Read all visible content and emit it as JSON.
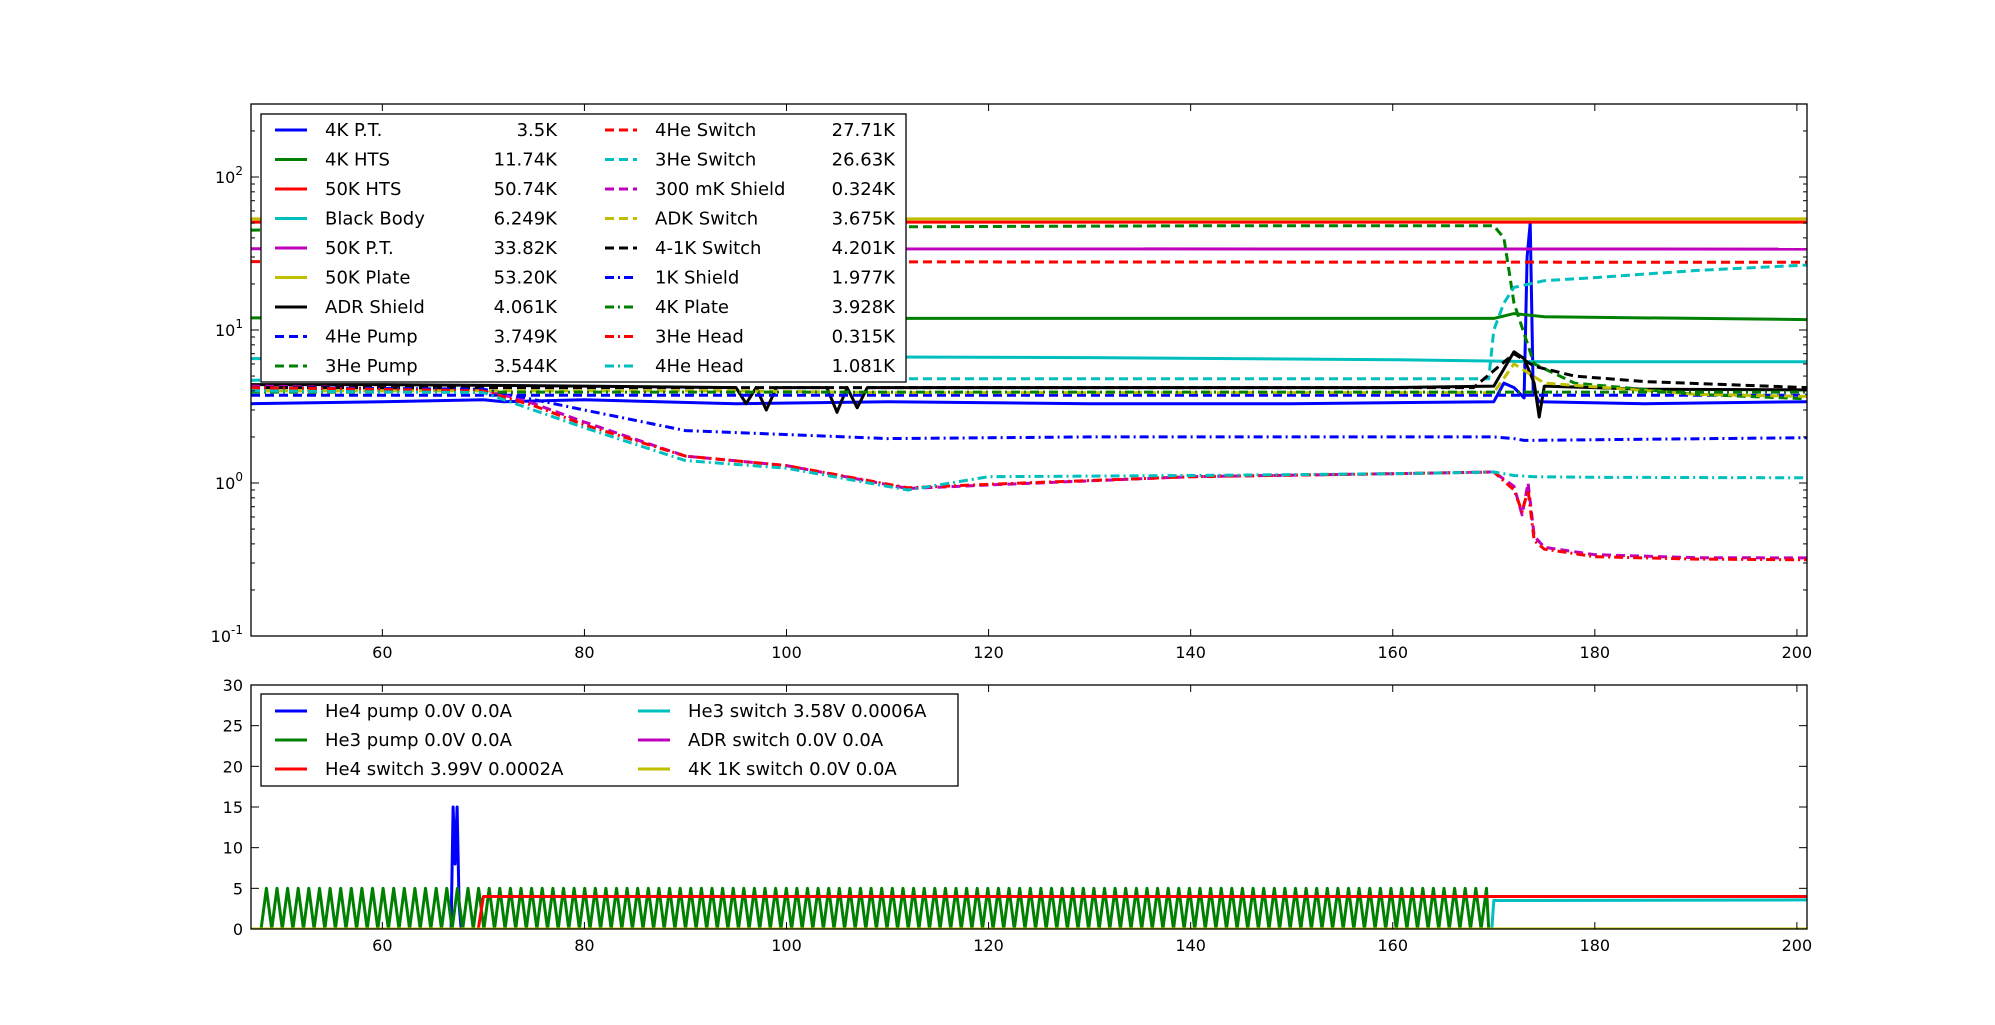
{
  "chart_data": [
    {
      "type": "line",
      "yscale": "log",
      "xlim": [
        47,
        201
      ],
      "ylim": [
        0.1,
        300
      ],
      "x_ticks": [
        60,
        80,
        100,
        120,
        140,
        160,
        180,
        200
      ],
      "x_tick_labels": [
        "60",
        "80",
        "100",
        "120",
        "140",
        "160",
        "180",
        "200"
      ],
      "y_ticks": [
        0.1,
        1,
        10,
        100
      ],
      "y_tick_labels": [
        [
          "10",
          "-1"
        ],
        [
          "10",
          "0"
        ],
        [
          "10",
          "1"
        ],
        [
          "10",
          "2"
        ]
      ],
      "legend_position": "top-left",
      "legend_columns": 2,
      "series": [
        {
          "name": "4K P.T.",
          "value": "3.5K",
          "color": "#0000ff",
          "style": "solid",
          "points": [
            [
              47,
              3.3
            ],
            [
              60,
              3.4
            ],
            [
              70,
              3.5
            ],
            [
              72,
              3.4
            ],
            [
              80,
              3.5
            ],
            [
              95,
              3.3
            ],
            [
              110,
              3.4
            ],
            [
              130,
              3.3
            ],
            [
              150,
              3.3
            ],
            [
              170,
              3.4
            ],
            [
              171,
              4.5
            ],
            [
              172,
              4.2
            ],
            [
              173,
              3.6
            ],
            [
              173.3,
              30
            ],
            [
              173.6,
              50
            ],
            [
              173.9,
              4
            ],
            [
              174.5,
              3.4
            ],
            [
              185,
              3.3
            ],
            [
              201,
              3.4
            ]
          ]
        },
        {
          "name": "4K HTS",
          "value": "11.74K",
          "color": "#008000",
          "style": "solid",
          "points": [
            [
              47,
              12
            ],
            [
              80,
              12
            ],
            [
              100,
              11.9
            ],
            [
              140,
              11.9
            ],
            [
              170,
              11.9
            ],
            [
              172,
              12.8
            ],
            [
              175,
              12.2
            ],
            [
              201,
              11.7
            ]
          ]
        },
        {
          "name": "50K HTS",
          "value": "50.74K",
          "color": "#ff0000",
          "style": "solid",
          "points": [
            [
              47,
              50.7
            ],
            [
              201,
              50.7
            ]
          ]
        },
        {
          "name": "Black Body",
          "value": "6.249K",
          "color": "#00bfbf",
          "style": "solid",
          "points": [
            [
              47,
              6.5
            ],
            [
              80,
              6.6
            ],
            [
              100,
              6.7
            ],
            [
              130,
              6.6
            ],
            [
              160,
              6.4
            ],
            [
              175,
              6.2
            ],
            [
              201,
              6.2
            ]
          ]
        },
        {
          "name": "50K P.T.",
          "value": "33.82K",
          "color": "#bf00bf",
          "style": "solid",
          "points": [
            [
              47,
              34
            ],
            [
              201,
              33.8
            ]
          ]
        },
        {
          "name": "50K Plate",
          "value": "53.20K",
          "color": "#bfbf00",
          "style": "solid",
          "points": [
            [
              47,
              53.2
            ],
            [
              201,
              53.2
            ]
          ]
        },
        {
          "name": "ADR Shield",
          "value": "4.061K",
          "color": "#000000",
          "style": "solid",
          "points": [
            [
              47,
              4.4
            ],
            [
              60,
              4.4
            ],
            [
              80,
              4.3
            ],
            [
              95,
              4.2
            ],
            [
              96,
              3.3
            ],
            [
              97,
              4.2
            ],
            [
              98,
              3.0
            ],
            [
              99,
              4.2
            ],
            [
              104,
              4.2
            ],
            [
              105,
              2.9
            ],
            [
              106,
              4.2
            ],
            [
              107,
              3.1
            ],
            [
              108,
              4.2
            ],
            [
              130,
              4.2
            ],
            [
              160,
              4.2
            ],
            [
              170,
              4.3
            ],
            [
              172,
              7.2
            ],
            [
              173,
              6.5
            ],
            [
              174,
              4.5
            ],
            [
              174.5,
              2.7
            ],
            [
              175,
              4.3
            ],
            [
              185,
              4.1
            ],
            [
              201,
              4.06
            ]
          ]
        },
        {
          "name": "4He Pump",
          "value": "3.749K",
          "color": "#0000ff",
          "style": "dashed",
          "points": [
            [
              47,
              3.75
            ],
            [
              201,
              3.75
            ]
          ]
        },
        {
          "name": "3He Pump",
          "value": "3.544K",
          "color": "#008000",
          "style": "dashed",
          "points": [
            [
              47,
              45
            ],
            [
              100,
              47
            ],
            [
              140,
              48
            ],
            [
              168,
              48
            ],
            [
              170,
              48
            ],
            [
              171,
              40
            ],
            [
              172,
              15
            ],
            [
              174,
              6
            ],
            [
              178,
              4.5
            ],
            [
              190,
              3.8
            ],
            [
              201,
              3.55
            ]
          ]
        },
        {
          "name": "4He Switch",
          "value": "27.71K",
          "color": "#ff0000",
          "style": "dashed",
          "points": [
            [
              47,
              28
            ],
            [
              201,
              27.7
            ]
          ]
        },
        {
          "name": "3He Switch",
          "value": "26.63K",
          "color": "#00bfbf",
          "style": "dashed",
          "points": [
            [
              47,
              4.7
            ],
            [
              100,
              4.8
            ],
            [
              140,
              4.8
            ],
            [
              169.5,
              4.8
            ],
            [
              170,
              10
            ],
            [
              171,
              15
            ],
            [
              172,
              19
            ],
            [
              175,
              21
            ],
            [
              180,
              22
            ],
            [
              190,
              24.5
            ],
            [
              201,
              26.6
            ]
          ]
        },
        {
          "name": "300 mK Shield",
          "value": "0.324K",
          "color": "#bf00bf",
          "style": "dashed",
          "points": [
            [
              47,
              4.3
            ],
            [
              70,
              4.1
            ],
            [
              75,
              3.3
            ],
            [
              80,
              2.5
            ],
            [
              90,
              1.5
            ],
            [
              100,
              1.3
            ],
            [
              112,
              0.92
            ],
            [
              120,
              0.97
            ],
            [
              140,
              1.1
            ],
            [
              160,
              1.15
            ],
            [
              170,
              1.18
            ],
            [
              172,
              0.95
            ],
            [
              172.8,
              0.62
            ],
            [
              173.4,
              1.0
            ],
            [
              174,
              0.45
            ],
            [
              175,
              0.38
            ],
            [
              180,
              0.34
            ],
            [
              190,
              0.325
            ],
            [
              201,
              0.324
            ]
          ]
        },
        {
          "name": "ADK Switch",
          "value": "3.675K",
          "color": "#bfbf00",
          "style": "dashed",
          "points": [
            [
              47,
              4.0
            ],
            [
              80,
              4.0
            ],
            [
              95,
              4.0
            ],
            [
              110,
              3.9
            ],
            [
              140,
              3.9
            ],
            [
              170,
              3.9
            ],
            [
              172,
              6.0
            ],
            [
              175,
              4.5
            ],
            [
              190,
              3.8
            ],
            [
              201,
              3.68
            ]
          ]
        },
        {
          "name": "4-1K Switch",
          "value": "4.201K",
          "color": "#000000",
          "style": "dashed",
          "points": [
            [
              47,
              4.2
            ],
            [
              168,
              4.2
            ],
            [
              172,
              7.0
            ],
            [
              174,
              5.8
            ],
            [
              178,
              5.0
            ],
            [
              185,
              4.6
            ],
            [
              201,
              4.2
            ]
          ]
        },
        {
          "name": "1K Shield",
          "value": "1.977K",
          "color": "#0000ff",
          "style": "dashdot",
          "points": [
            [
              47,
              4.2
            ],
            [
              70,
              4.1
            ],
            [
              80,
              3.0
            ],
            [
              90,
              2.2
            ],
            [
              110,
              1.95
            ],
            [
              130,
              2.0
            ],
            [
              150,
              2.0
            ],
            [
              170,
              2.0
            ],
            [
              172,
              1.95
            ],
            [
              173,
              1.9
            ],
            [
              201,
              1.977
            ]
          ]
        },
        {
          "name": "4K Plate",
          "value": "3.928K",
          "color": "#008000",
          "style": "dashdot",
          "points": [
            [
              47,
              3.93
            ],
            [
              201,
              3.93
            ]
          ]
        },
        {
          "name": "3He Head",
          "value": "0.315K",
          "color": "#ff0000",
          "style": "dashdot",
          "points": [
            [
              47,
              4.2
            ],
            [
              70,
              4.0
            ],
            [
              75,
              3.2
            ],
            [
              80,
              2.4
            ],
            [
              90,
              1.5
            ],
            [
              100,
              1.3
            ],
            [
              112,
              0.93
            ],
            [
              120,
              0.98
            ],
            [
              140,
              1.1
            ],
            [
              160,
              1.15
            ],
            [
              170,
              1.18
            ],
            [
              172,
              0.9
            ],
            [
              172.8,
              0.65
            ],
            [
              173.4,
              0.9
            ],
            [
              174,
              0.42
            ],
            [
              175,
              0.37
            ],
            [
              180,
              0.33
            ],
            [
              190,
              0.318
            ],
            [
              201,
              0.315
            ]
          ]
        },
        {
          "name": "4He Head",
          "value": "1.081K",
          "color": "#00bfbf",
          "style": "dashdot",
          "points": [
            [
              47,
              4.0
            ],
            [
              70,
              3.9
            ],
            [
              80,
              2.3
            ],
            [
              90,
              1.4
            ],
            [
              100,
              1.25
            ],
            [
              112,
              0.9
            ],
            [
              120,
              1.1
            ],
            [
              140,
              1.12
            ],
            [
              160,
              1.15
            ],
            [
              170,
              1.18
            ],
            [
              172,
              1.12
            ],
            [
              174,
              1.1
            ],
            [
              180,
              1.09
            ],
            [
              201,
              1.081
            ]
          ]
        }
      ]
    },
    {
      "type": "line",
      "yscale": "linear",
      "xlim": [
        47,
        201
      ],
      "ylim": [
        0,
        30
      ],
      "x_ticks": [
        60,
        80,
        100,
        120,
        140,
        160,
        180,
        200
      ],
      "x_tick_labels": [
        "60",
        "80",
        "100",
        "120",
        "140",
        "160",
        "180",
        "200"
      ],
      "y_ticks": [
        0,
        5,
        10,
        15,
        20,
        25,
        30
      ],
      "y_tick_labels": [
        "0",
        "5",
        "10",
        "15",
        "20",
        "25",
        "30"
      ],
      "legend_position": "top-left",
      "legend_columns": 2,
      "series": [
        {
          "name": "He4 pump 0.0V 0.0A",
          "color": "#0000ff",
          "points": [
            [
              47,
              0
            ],
            [
              66.8,
              0
            ],
            [
              67.0,
              15
            ],
            [
              67.2,
              8
            ],
            [
              67.4,
              15
            ],
            [
              67.6,
              3
            ],
            [
              67.8,
              0
            ],
            [
              201,
              0
            ]
          ]
        },
        {
          "name": "He3 pump 0.0V 0.0A",
          "color": "#008000",
          "oscillation": {
            "start": 48,
            "end": 169.5,
            "period": 1.05,
            "low": 0,
            "high": 5
          },
          "points": [
            [
              169.5,
              0
            ],
            [
              201,
              0
            ]
          ]
        },
        {
          "name": "He4 switch 3.99V 0.0002A",
          "color": "#ff0000",
          "points": [
            [
              47,
              0
            ],
            [
              69.5,
              0
            ],
            [
              70,
              4.0
            ],
            [
              201,
              4.0
            ]
          ]
        },
        {
          "name": "He3 switch 3.58V 0.0006A",
          "color": "#00bfbf",
          "points": [
            [
              47,
              0
            ],
            [
              169.8,
              0
            ],
            [
              170,
              3.5
            ],
            [
              201,
              3.58
            ]
          ]
        },
        {
          "name": "ADR switch 0.0V 0.0A",
          "color": "#bf00bf",
          "points": [
            [
              47,
              0
            ],
            [
              201,
              0
            ]
          ]
        },
        {
          "name": "4K 1K switch 0.0V 0.0A",
          "color": "#bfbf00",
          "points": [
            [
              47,
              0
            ],
            [
              201,
              0
            ]
          ]
        }
      ]
    }
  ]
}
